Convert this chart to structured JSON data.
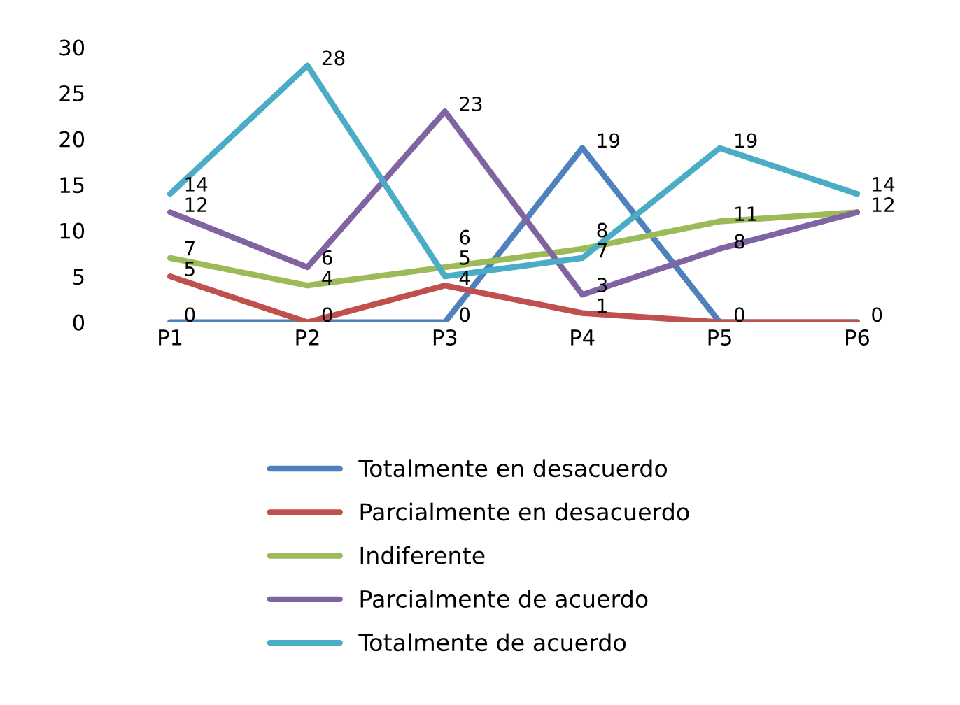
{
  "chart_data": {
    "type": "line",
    "categories": [
      "P1",
      "P2",
      "P3",
      "P4",
      "P5",
      "P6"
    ],
    "series": [
      {
        "name": "Totalmente en desacuerdo",
        "color": "#4f81bd",
        "values": [
          0,
          0,
          0,
          19,
          0,
          0
        ],
        "value_labels": [
          "0",
          "0",
          "0",
          "19",
          "0",
          "0"
        ]
      },
      {
        "name": "Parcialmente en desacuerdo",
        "color": "#c0504d",
        "values": [
          5,
          0,
          4,
          1,
          0,
          0
        ],
        "value_labels": [
          "5",
          null,
          "4",
          "1",
          null,
          null
        ]
      },
      {
        "name": "Indiferente",
        "color": "#9bbb59",
        "values": [
          7,
          4,
          6,
          8,
          11,
          12
        ],
        "value_labels": [
          "7",
          "4",
          "6",
          "8",
          "11",
          "12"
        ]
      },
      {
        "name": "Parcialmente de acuerdo",
        "color": "#8064a2",
        "values": [
          12,
          6,
          23,
          3,
          8,
          12
        ],
        "value_labels": [
          "12",
          "6",
          "23",
          "3",
          "8",
          null
        ]
      },
      {
        "name": "Totalmente de acuerdo",
        "color": "#4bacc6",
        "values": [
          14,
          28,
          5,
          7,
          19,
          14
        ],
        "value_labels": [
          "14",
          "28",
          "5",
          "7",
          "19",
          "14"
        ]
      }
    ],
    "ylim": [
      0,
      30
    ],
    "yticks": [
      0,
      5,
      10,
      15,
      20,
      25,
      30
    ],
    "grid": false,
    "legend": "bottom",
    "marker": "none",
    "line_style": "solid"
  }
}
